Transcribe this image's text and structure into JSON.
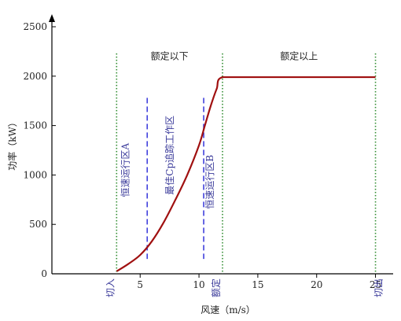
{
  "chart_data": {
    "type": "line",
    "title": "",
    "xlabel": "风速（m/s）",
    "ylabel": "功率（kW）",
    "xlim": [
      -2.5,
      26.5
    ],
    "ylim": [
      0,
      2600
    ],
    "x_ticks": [
      5,
      10,
      15,
      20,
      25
    ],
    "y_ticks": [
      0,
      500,
      1000,
      1500,
      2000,
      2500
    ],
    "grid": false,
    "legend": "none",
    "series": [
      {
        "color": "#a01010",
        "x": [
          3,
          4,
          5,
          6,
          7,
          8,
          9,
          10,
          10.5,
          11,
          11.5,
          12,
          15,
          20,
          25
        ],
        "values": [
          25,
          100,
          190,
          330,
          520,
          750,
          1000,
          1300,
          1500,
          1700,
          1870,
          1990,
          1990,
          1990,
          1990
        ]
      }
    ],
    "vertical_markers": [
      {
        "x": 3,
        "label": "切入",
        "style": "dotted",
        "color": "#2e8b2e"
      },
      {
        "x": 12,
        "label": "额定",
        "style": "dotted",
        "color": "#2e8b2e"
      },
      {
        "x": 25,
        "label": "切出",
        "style": "dotted",
        "color": "#2e8b2e"
      }
    ],
    "boundary_lines": [
      {
        "x": 5.6,
        "y_from": 150,
        "y_to": 1780,
        "style": "dashed",
        "color": "#3f3fdc"
      },
      {
        "x": 10.4,
        "y_from": 150,
        "y_to": 1780,
        "style": "dashed",
        "color": "#3f3fdc"
      }
    ],
    "region_labels": [
      {
        "text": "额定以下",
        "x": 7.5,
        "y": 2170
      },
      {
        "text": "额定以上",
        "x": 18.5,
        "y": 2170
      }
    ],
    "zone_labels": [
      {
        "text": "恒速运行区A",
        "x": 4.0,
        "y": 1050,
        "color": "#3a3a9a"
      },
      {
        "text": "最佳Cp追踪工作区",
        "x": 7.8,
        "y": 1200,
        "color": "#3a3a9a"
      },
      {
        "text": "恒速运行区B",
        "x": 11.2,
        "y": 930,
        "color": "#3a3a9a"
      }
    ]
  }
}
